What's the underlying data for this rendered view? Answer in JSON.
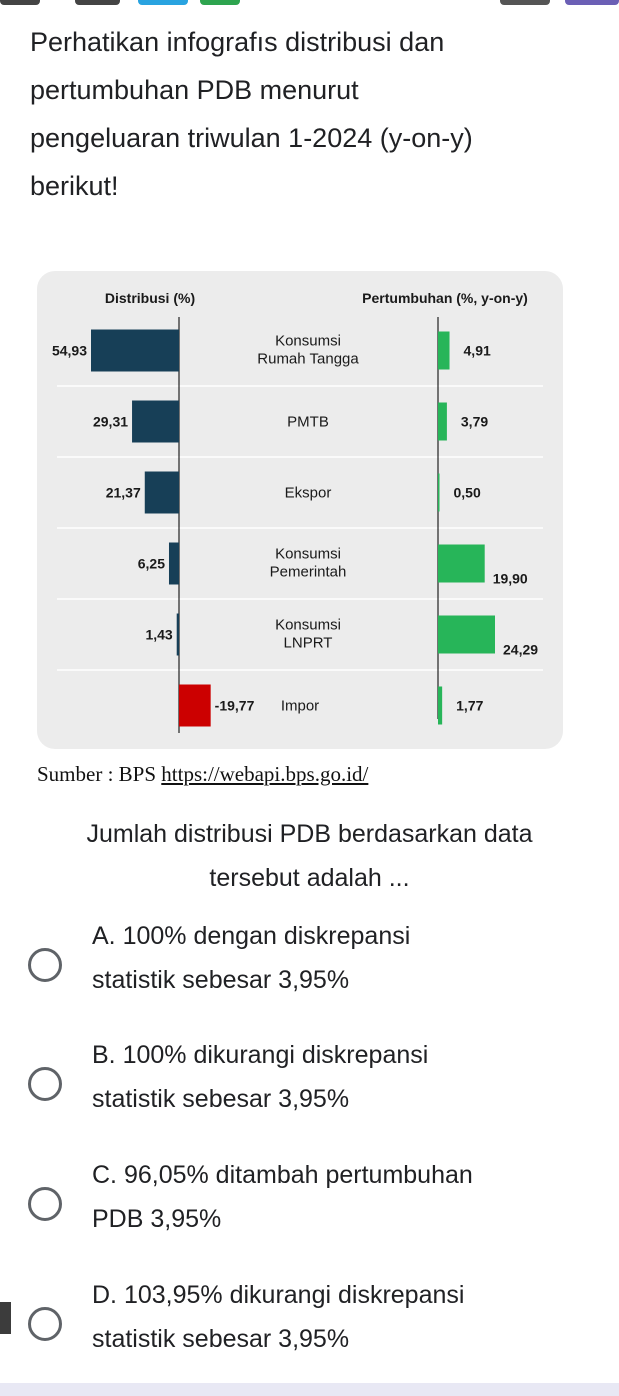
{
  "question": {
    "lines": [
      "Perhatikan infografıs distribusi dan",
      "pertumbuhan PDB menurut",
      "pengeluaran triwulan 1-2024 (y-on-y)",
      "berikut!"
    ]
  },
  "chart_data": {
    "type": "bar",
    "left_title": "Distribusi (%)",
    "right_title": "Pertumbuhan (%, y-on-y)",
    "categories": [
      [
        "Konsumsi",
        "Rumah Tangga"
      ],
      [
        "PMTB"
      ],
      [
        "Ekspor"
      ],
      [
        "Konsumsi",
        "Pemerintah"
      ],
      [
        "Konsumsi",
        "LNPRT"
      ],
      [
        "Impor"
      ]
    ],
    "distribution": {
      "values": [
        54.93,
        29.31,
        21.37,
        6.25,
        1.43,
        -19.77
      ],
      "labels": [
        "54,93",
        "29,31",
        "21,37",
        "6,25",
        "1,43",
        "-19,77"
      ],
      "positive_color": "#173f57",
      "negative_color": "#cc0000"
    },
    "growth": {
      "values": [
        4.91,
        3.79,
        0.5,
        19.9,
        24.29,
        1.77
      ],
      "labels": [
        "4,91",
        "3,79",
        "0,50",
        "19,90",
        "24,29",
        "1,77"
      ],
      "color": "#27b559"
    }
  },
  "source": {
    "prefix": "Sumber : BPS ",
    "link": "https://webapi.bps.go.id/"
  },
  "prompt": {
    "lines": [
      "Jumlah distribusi PDB berdasarkan data",
      "tersebut adalah ..."
    ]
  },
  "options": [
    {
      "line1": "A. 100% dengan diskrepansi",
      "line2": "statistik sebesar 3,95%"
    },
    {
      "line1": "B. 100% dikurangi diskrepansi",
      "line2": "statistik sebesar 3,95%"
    },
    {
      "line1": "C. 96,05% ditambah pertumbuhan",
      "line2": "PDB 3,95%"
    },
    {
      "line1": "D. 103,95% dikurangi diskrepansi",
      "line2": "statistik sebesar 3,95%"
    }
  ],
  "colors": {
    "radio_border": "#5f6368",
    "text": "#202124",
    "card_bg": "#ececec"
  }
}
